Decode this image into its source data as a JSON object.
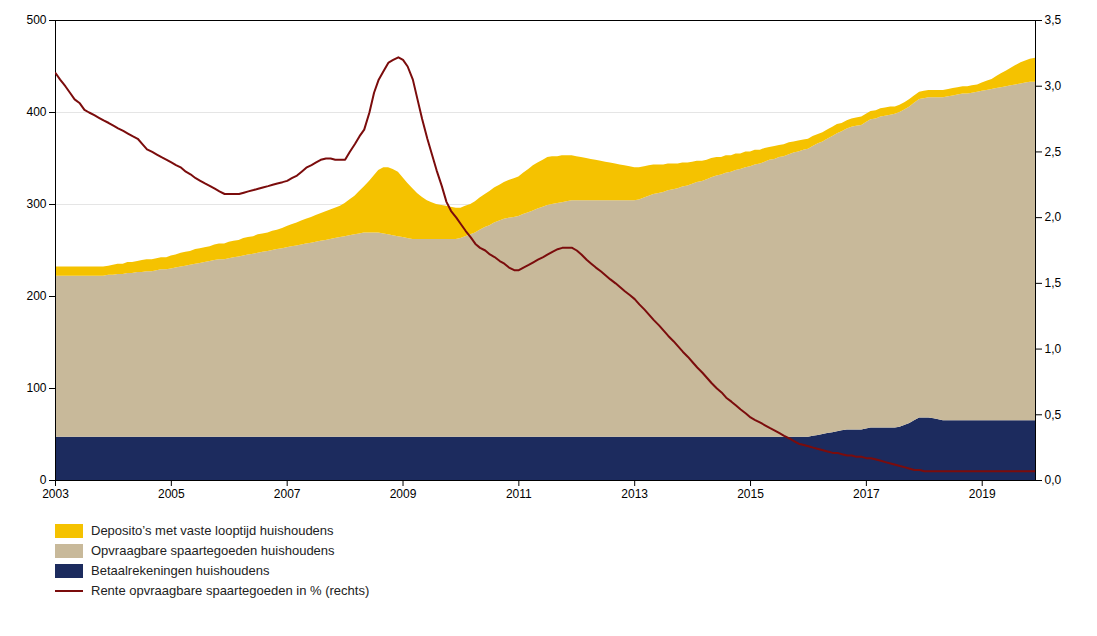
{
  "chart_data": {
    "type": "area",
    "stacked": true,
    "grid": true,
    "legend": "bottom",
    "xlim": [
      2003,
      2019.92
    ],
    "xticks": [
      2003,
      2005,
      2007,
      2009,
      2011,
      2013,
      2015,
      2017,
      2019
    ],
    "ylim": [
      0,
      500
    ],
    "yticks": [
      0,
      100,
      200,
      300,
      400,
      500
    ],
    "y2lim": [
      0.0,
      3.5
    ],
    "y2ticks": [
      {
        "value": 0.0,
        "label": "0,0"
      },
      {
        "value": 0.5,
        "label": "0,5"
      },
      {
        "value": 1.0,
        "label": "1,0"
      },
      {
        "value": 1.5,
        "label": "1,5"
      },
      {
        "value": 2.0,
        "label": "2,0"
      },
      {
        "value": 2.5,
        "label": "2,5"
      },
      {
        "value": 3.0,
        "label": "3,0"
      },
      {
        "value": 3.5,
        "label": "3,5"
      }
    ],
    "x": [
      2003.0,
      2003.08,
      2003.17,
      2003.25,
      2003.33,
      2003.42,
      2003.5,
      2003.58,
      2003.67,
      2003.75,
      2003.83,
      2003.92,
      2004.0,
      2004.08,
      2004.17,
      2004.25,
      2004.33,
      2004.42,
      2004.5,
      2004.58,
      2004.67,
      2004.75,
      2004.83,
      2004.92,
      2005.0,
      2005.08,
      2005.17,
      2005.25,
      2005.33,
      2005.42,
      2005.5,
      2005.58,
      2005.67,
      2005.75,
      2005.83,
      2005.92,
      2006.0,
      2006.08,
      2006.17,
      2006.25,
      2006.33,
      2006.42,
      2006.5,
      2006.58,
      2006.67,
      2006.75,
      2006.83,
      2006.92,
      2007.0,
      2007.08,
      2007.17,
      2007.25,
      2007.33,
      2007.42,
      2007.5,
      2007.58,
      2007.67,
      2007.75,
      2007.83,
      2007.92,
      2008.0,
      2008.08,
      2008.17,
      2008.25,
      2008.33,
      2008.42,
      2008.5,
      2008.58,
      2008.67,
      2008.75,
      2008.83,
      2008.92,
      2009.0,
      2009.08,
      2009.17,
      2009.25,
      2009.33,
      2009.42,
      2009.5,
      2009.58,
      2009.67,
      2009.75,
      2009.83,
      2009.92,
      2010.0,
      2010.08,
      2010.17,
      2010.25,
      2010.33,
      2010.42,
      2010.5,
      2010.58,
      2010.67,
      2010.75,
      2010.83,
      2010.92,
      2011.0,
      2011.08,
      2011.17,
      2011.25,
      2011.33,
      2011.42,
      2011.5,
      2011.58,
      2011.67,
      2011.75,
      2011.83,
      2011.92,
      2012.0,
      2012.08,
      2012.17,
      2012.25,
      2012.33,
      2012.42,
      2012.5,
      2012.58,
      2012.67,
      2012.75,
      2012.83,
      2012.92,
      2013.0,
      2013.08,
      2013.17,
      2013.25,
      2013.33,
      2013.42,
      2013.5,
      2013.58,
      2013.67,
      2013.75,
      2013.83,
      2013.92,
      2014.0,
      2014.08,
      2014.17,
      2014.25,
      2014.33,
      2014.42,
      2014.5,
      2014.58,
      2014.67,
      2014.75,
      2014.83,
      2014.92,
      2015.0,
      2015.08,
      2015.17,
      2015.25,
      2015.33,
      2015.42,
      2015.5,
      2015.58,
      2015.67,
      2015.75,
      2015.83,
      2015.92,
      2016.0,
      2016.08,
      2016.17,
      2016.25,
      2016.33,
      2016.42,
      2016.5,
      2016.58,
      2016.67,
      2016.75,
      2016.83,
      2016.92,
      2017.0,
      2017.08,
      2017.17,
      2017.25,
      2017.33,
      2017.42,
      2017.5,
      2017.58,
      2017.67,
      2017.75,
      2017.83,
      2017.92,
      2018.0,
      2018.08,
      2018.17,
      2018.25,
      2018.33,
      2018.42,
      2018.5,
      2018.58,
      2018.67,
      2018.75,
      2018.83,
      2018.92,
      2019.0,
      2019.08,
      2019.17,
      2019.25,
      2019.33,
      2019.42,
      2019.5,
      2019.58,
      2019.67,
      2019.75,
      2019.83,
      2019.92
    ],
    "series": [
      {
        "name": "Betaalrekeningen huishoudens",
        "color": "#1C2B5E",
        "type": "area",
        "values": [
          47,
          47,
          47,
          47,
          47,
          47,
          47,
          47,
          47,
          47,
          47,
          47,
          47,
          47,
          47,
          47,
          47,
          47,
          47,
          47,
          47,
          47,
          47,
          47,
          47,
          47,
          47,
          47,
          47,
          47,
          47,
          47,
          47,
          47,
          47,
          47,
          47,
          47,
          47,
          47,
          47,
          47,
          47,
          47,
          47,
          47,
          47,
          47,
          47,
          47,
          47,
          47,
          47,
          47,
          47,
          47,
          47,
          47,
          47,
          47,
          47,
          47,
          47,
          47,
          47,
          47,
          47,
          47,
          47,
          47,
          47,
          47,
          47,
          47,
          47,
          47,
          47,
          47,
          47,
          47,
          47,
          47,
          47,
          47,
          47,
          47,
          47,
          47,
          47,
          47,
          47,
          47,
          47,
          47,
          47,
          47,
          47,
          47,
          47,
          47,
          47,
          47,
          47,
          47,
          47,
          47,
          47,
          47,
          47,
          47,
          47,
          47,
          47,
          47,
          47,
          47,
          47,
          47,
          47,
          47,
          47,
          47,
          47,
          47,
          47,
          47,
          47,
          47,
          47,
          47,
          47,
          47,
          47,
          47,
          47,
          47,
          47,
          47,
          47,
          47,
          47,
          47,
          47,
          47,
          47,
          47,
          47,
          47,
          47,
          47,
          47,
          47,
          47,
          47,
          47,
          47,
          47,
          48,
          49,
          50,
          51,
          52,
          53,
          54,
          55,
          55,
          55,
          55,
          56,
          57,
          57,
          57,
          57,
          57,
          57,
          58,
          60,
          62,
          65,
          68,
          68,
          68,
          67,
          66,
          65,
          65,
          65,
          65,
          65,
          65,
          65,
          65,
          65,
          65,
          65,
          65,
          65,
          65,
          65,
          65,
          65,
          65,
          65,
          65
        ]
      },
      {
        "name": "Opvraagbare spaartegoeden huishoudens",
        "color": "#C8B99A",
        "type": "area",
        "values": [
          175,
          175,
          175,
          175,
          175,
          175,
          175,
          175,
          175,
          175,
          175,
          176,
          176,
          177,
          177,
          178,
          178,
          179,
          179,
          180,
          180,
          181,
          182,
          182,
          183,
          184,
          185,
          186,
          187,
          188,
          189,
          190,
          191,
          192,
          193,
          193,
          194,
          195,
          196,
          197,
          198,
          199,
          200,
          201,
          202,
          203,
          204,
          205,
          206,
          207,
          208,
          209,
          210,
          211,
          212,
          213,
          214,
          215,
          216,
          217,
          218,
          219,
          220,
          221,
          222,
          222,
          222,
          222,
          221,
          220,
          219,
          218,
          217,
          216,
          215,
          215,
          215,
          215,
          215,
          215,
          215,
          215,
          215,
          215,
          216,
          218,
          220,
          222,
          225,
          228,
          230,
          233,
          235,
          237,
          238,
          239,
          240,
          242,
          244,
          246,
          248,
          250,
          252,
          253,
          254,
          255,
          256,
          257,
          257,
          257,
          257,
          257,
          257,
          257,
          257,
          257,
          257,
          257,
          257,
          257,
          257,
          258,
          260,
          262,
          264,
          265,
          266,
          268,
          269,
          270,
          272,
          273,
          275,
          277,
          278,
          280,
          282,
          284,
          285,
          287,
          288,
          290,
          291,
          293,
          294,
          296,
          297,
          299,
          301,
          302,
          304,
          305,
          307,
          309,
          310,
          312,
          313,
          315,
          317,
          318,
          320,
          322,
          324,
          325,
          327,
          329,
          330,
          331,
          333,
          335,
          336,
          338,
          339,
          340,
          341,
          342,
          343,
          344,
          345,
          346,
          347,
          348,
          349,
          350,
          351,
          352,
          353,
          354,
          355,
          355,
          356,
          357,
          358,
          359,
          360,
          361,
          362,
          363,
          364,
          365,
          366,
          367,
          368,
          368
        ]
      },
      {
        "name": "Deposito’s met vaste looptijd huishoudens",
        "color": "#F5C200",
        "type": "area",
        "values": [
          10,
          10,
          10,
          10,
          10,
          10,
          10,
          10,
          10,
          10,
          10,
          10,
          11,
          11,
          11,
          12,
          12,
          12,
          13,
          13,
          13,
          13,
          13,
          13,
          14,
          14,
          15,
          15,
          15,
          16,
          16,
          16,
          16,
          17,
          17,
          17,
          18,
          18,
          18,
          19,
          19,
          19,
          20,
          20,
          20,
          21,
          21,
          22,
          23,
          24,
          25,
          26,
          27,
          28,
          29,
          30,
          31,
          32,
          33,
          34,
          36,
          39,
          42,
          46,
          50,
          56,
          62,
          68,
          72,
          73,
          72,
          70,
          65,
          60,
          55,
          50,
          46,
          42,
          40,
          38,
          37,
          36,
          35,
          34,
          33,
          33,
          33,
          34,
          35,
          36,
          37,
          38,
          39,
          40,
          41,
          42,
          43,
          45,
          47,
          49,
          50,
          51,
          52,
          52,
          51,
          51,
          50,
          49,
          48,
          47,
          46,
          45,
          44,
          43,
          42,
          41,
          40,
          39,
          38,
          37,
          36,
          35,
          34,
          33,
          32,
          31,
          30,
          29,
          28,
          27,
          26,
          25,
          24,
          23,
          22,
          21,
          21,
          20,
          19,
          19,
          18,
          18,
          17,
          17,
          16,
          16,
          15,
          15,
          14,
          14,
          13,
          13,
          13,
          12,
          12,
          11,
          11,
          11,
          10,
          10,
          10,
          10,
          10,
          9,
          9,
          9,
          9,
          9,
          9,
          9,
          9,
          9,
          9,
          9,
          8,
          8,
          8,
          8,
          8,
          8,
          8,
          8,
          8,
          8,
          8,
          8,
          8,
          8,
          8,
          8,
          8,
          8,
          9,
          10,
          11,
          13,
          15,
          17,
          19,
          21,
          23,
          24,
          25,
          26
        ]
      },
      {
        "name": "Rente opvraagbare spaartegoeden in % (rechts)",
        "color": "#7B0C0C",
        "type": "line",
        "axis": "y2",
        "values": [
          3.1,
          3.05,
          3.0,
          2.95,
          2.9,
          2.87,
          2.82,
          2.8,
          2.78,
          2.76,
          2.74,
          2.72,
          2.7,
          2.68,
          2.66,
          2.64,
          2.62,
          2.6,
          2.56,
          2.52,
          2.5,
          2.48,
          2.46,
          2.44,
          2.42,
          2.4,
          2.38,
          2.35,
          2.33,
          2.3,
          2.28,
          2.26,
          2.24,
          2.22,
          2.2,
          2.18,
          2.18,
          2.18,
          2.18,
          2.19,
          2.2,
          2.21,
          2.22,
          2.23,
          2.24,
          2.25,
          2.26,
          2.27,
          2.28,
          2.3,
          2.32,
          2.35,
          2.38,
          2.4,
          2.42,
          2.44,
          2.45,
          2.45,
          2.44,
          2.44,
          2.44,
          2.5,
          2.56,
          2.62,
          2.67,
          2.8,
          2.95,
          3.05,
          3.12,
          3.18,
          3.2,
          3.22,
          3.2,
          3.15,
          3.05,
          2.9,
          2.75,
          2.6,
          2.48,
          2.36,
          2.24,
          2.12,
          2.05,
          2.0,
          1.95,
          1.9,
          1.85,
          1.8,
          1.77,
          1.75,
          1.72,
          1.7,
          1.67,
          1.65,
          1.62,
          1.6,
          1.6,
          1.62,
          1.64,
          1.66,
          1.68,
          1.7,
          1.72,
          1.74,
          1.76,
          1.77,
          1.77,
          1.77,
          1.75,
          1.72,
          1.68,
          1.65,
          1.62,
          1.59,
          1.56,
          1.53,
          1.5,
          1.47,
          1.44,
          1.41,
          1.38,
          1.34,
          1.3,
          1.26,
          1.22,
          1.18,
          1.14,
          1.1,
          1.06,
          1.02,
          0.98,
          0.94,
          0.9,
          0.86,
          0.82,
          0.78,
          0.74,
          0.7,
          0.67,
          0.63,
          0.6,
          0.57,
          0.54,
          0.51,
          0.48,
          0.46,
          0.44,
          0.42,
          0.4,
          0.38,
          0.36,
          0.34,
          0.32,
          0.3,
          0.28,
          0.27,
          0.26,
          0.25,
          0.24,
          0.23,
          0.22,
          0.21,
          0.21,
          0.2,
          0.19,
          0.19,
          0.18,
          0.18,
          0.17,
          0.17,
          0.16,
          0.15,
          0.14,
          0.13,
          0.12,
          0.11,
          0.1,
          0.09,
          0.08,
          0.08,
          0.07,
          0.07,
          0.07,
          0.07,
          0.07,
          0.07,
          0.07,
          0.07,
          0.07,
          0.07,
          0.07,
          0.07,
          0.07,
          0.07,
          0.07,
          0.07,
          0.07,
          0.07,
          0.07,
          0.07,
          0.07,
          0.07,
          0.07,
          0.07
        ]
      }
    ]
  }
}
